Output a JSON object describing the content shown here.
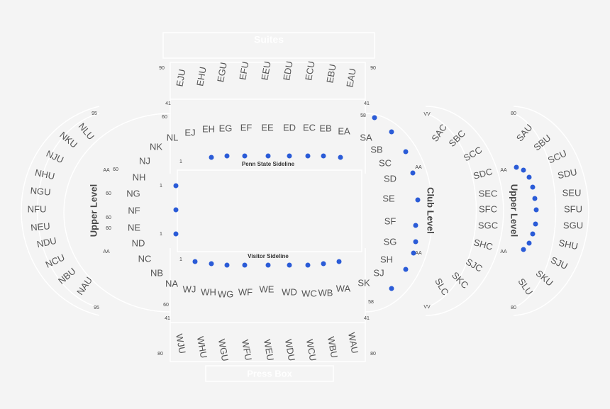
{
  "header": {
    "suites": "Suites",
    "press_box": "Press Box"
  },
  "labels": {
    "penn_state_sideline": "Penn State Sideline",
    "visitor_sideline": "Visitor Sideline",
    "club_level": "Club Level",
    "upper_level_left": "Upper Level",
    "upper_level_right": "Upper Level"
  },
  "sections": [
    "EJU",
    "EHU",
    "EGU",
    "EFU",
    "EEU",
    "EDU",
    "ECU",
    "EBU",
    "EAU",
    "EJ",
    "EH",
    "EG",
    "EF",
    "EE",
    "ED",
    "EC",
    "EB",
    "EA",
    "WJ",
    "WH",
    "WG",
    "WF",
    "WE",
    "WD",
    "WC",
    "WB",
    "WA",
    "WJU",
    "WHU",
    "WGU",
    "WFU",
    "WEU",
    "WDU",
    "WCU",
    "WBU",
    "WAU",
    "NL",
    "NK",
    "NJ",
    "NH",
    "NG",
    "NF",
    "NE",
    "ND",
    "NC",
    "NB",
    "NA",
    "NLU",
    "NKU",
    "NJU",
    "NHU",
    "NGU",
    "NFU",
    "NEU",
    "NDU",
    "NCU",
    "NBU",
    "NAU",
    "SA",
    "SB",
    "SC",
    "SD",
    "SE",
    "SF",
    "SG",
    "SH",
    "SJ",
    "SK",
    "SAC",
    "SBC",
    "SCC",
    "SDC",
    "SEC",
    "SFC",
    "SGC",
    "SHC",
    "SJC",
    "SKC",
    "SLC",
    "SAU",
    "SBU",
    "SCU",
    "SDU",
    "SEU",
    "SFU",
    "SGU",
    "SHU",
    "SJU",
    "SKU",
    "SLU"
  ],
  "row_markers": [
    "90",
    "90",
    "41",
    "41",
    "41",
    "41",
    "80",
    "80",
    "95",
    "95",
    "80",
    "80",
    "60",
    "58",
    "60",
    "58",
    "VV",
    "VV",
    "AA",
    "AA",
    "AA",
    "AA",
    "AA",
    "AA",
    "60",
    "60",
    "60",
    "60",
    "1",
    "1",
    "1",
    "1"
  ]
}
